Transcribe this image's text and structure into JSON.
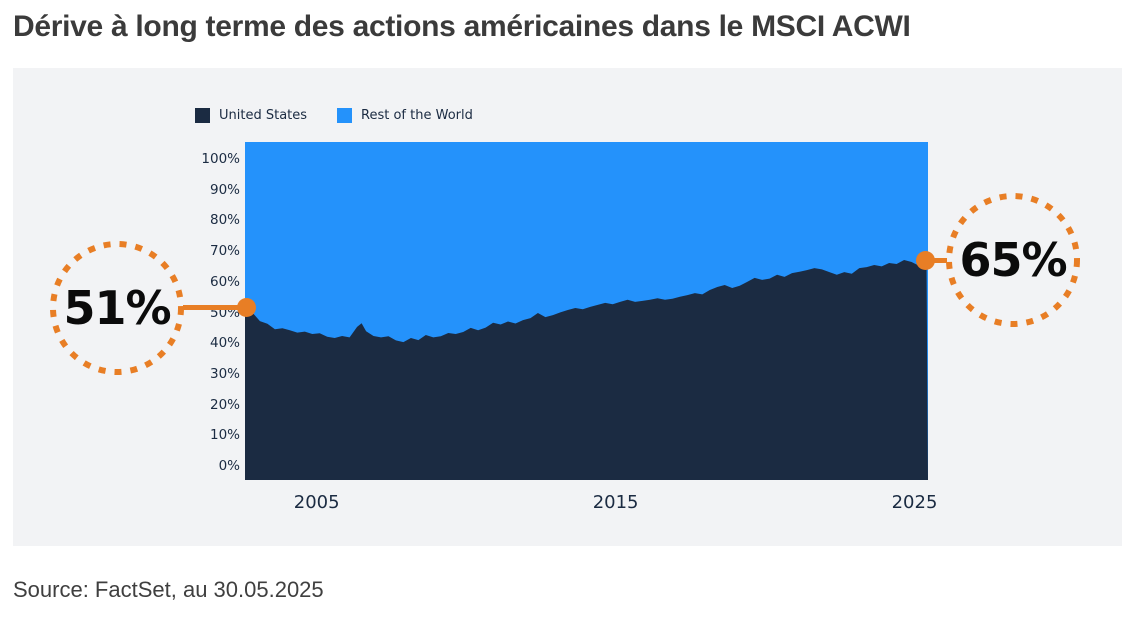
{
  "header": {
    "title": "Dérive à long terme des actions américaines dans le MSCI ACWI"
  },
  "footer": {
    "source": "Source: FactSet, au 30.05.2025"
  },
  "annotations": {
    "start": {
      "label": "51%"
    },
    "end": {
      "label": "65%"
    }
  },
  "colors": {
    "united_states_area": "#1b2b42",
    "rest_of_world_area": "#2492fb",
    "accent_orange": "#e87e25",
    "panel_background": "#f2f3f5",
    "title_text": "#3b3b3b",
    "axis_text": "#1b2b42",
    "callout_text": "#0b0b0b"
  },
  "chart_data": {
    "type": "area",
    "stacked_percent": true,
    "title": "Dérive à long terme des actions américaines dans le MSCI ACWI",
    "xlabel": "",
    "ylabel": "",
    "ylim": [
      0,
      100
    ],
    "x_range": [
      2002.6,
      2025.45
    ],
    "grid": false,
    "legend_position": "top-left",
    "y_ticks": [
      {
        "value": 0,
        "label": "0%"
      },
      {
        "value": 10,
        "label": "10%"
      },
      {
        "value": 20,
        "label": "20%"
      },
      {
        "value": 30,
        "label": "30%"
      },
      {
        "value": 40,
        "label": "40%"
      },
      {
        "value": 50,
        "label": "50%"
      },
      {
        "value": 60,
        "label": "60%"
      },
      {
        "value": 70,
        "label": "70%"
      },
      {
        "value": 80,
        "label": "80%"
      },
      {
        "value": 90,
        "label": "90%"
      },
      {
        "value": 100,
        "label": "100%"
      }
    ],
    "x_ticks": [
      {
        "value": 2005,
        "label": "2005"
      },
      {
        "value": 2015,
        "label": "2015"
      },
      {
        "value": 2025,
        "label": "2025"
      }
    ],
    "series": [
      {
        "name": "United States",
        "color": "#1b2b42",
        "points": [
          [
            2002.6,
            51.0
          ],
          [
            2002.85,
            49.5
          ],
          [
            2003.1,
            47.0
          ],
          [
            2003.35,
            46.2
          ],
          [
            2003.6,
            44.6
          ],
          [
            2003.85,
            44.9
          ],
          [
            2004.1,
            44.3
          ],
          [
            2004.35,
            43.6
          ],
          [
            2004.6,
            43.9
          ],
          [
            2004.85,
            43.2
          ],
          [
            2005.1,
            43.4
          ],
          [
            2005.35,
            42.4
          ],
          [
            2005.6,
            42.0
          ],
          [
            2005.85,
            42.6
          ],
          [
            2006.1,
            42.2
          ],
          [
            2006.35,
            45.3
          ],
          [
            2006.5,
            46.4
          ],
          [
            2006.65,
            44.0
          ],
          [
            2006.9,
            42.6
          ],
          [
            2007.15,
            42.2
          ],
          [
            2007.4,
            42.5
          ],
          [
            2007.65,
            41.3
          ],
          [
            2007.9,
            40.8
          ],
          [
            2008.15,
            42.0
          ],
          [
            2008.4,
            41.4
          ],
          [
            2008.65,
            42.9
          ],
          [
            2008.9,
            42.2
          ],
          [
            2009.15,
            42.5
          ],
          [
            2009.4,
            43.5
          ],
          [
            2009.65,
            43.2
          ],
          [
            2009.9,
            43.8
          ],
          [
            2010.15,
            45.0
          ],
          [
            2010.4,
            44.3
          ],
          [
            2010.65,
            45.1
          ],
          [
            2010.9,
            46.5
          ],
          [
            2011.15,
            46.0
          ],
          [
            2011.4,
            46.9
          ],
          [
            2011.65,
            46.3
          ],
          [
            2011.9,
            47.3
          ],
          [
            2012.15,
            47.9
          ],
          [
            2012.4,
            49.4
          ],
          [
            2012.65,
            48.2
          ],
          [
            2012.9,
            48.8
          ],
          [
            2013.15,
            49.6
          ],
          [
            2013.4,
            50.3
          ],
          [
            2013.65,
            50.9
          ],
          [
            2013.9,
            50.5
          ],
          [
            2014.15,
            51.2
          ],
          [
            2014.4,
            51.8
          ],
          [
            2014.65,
            52.4
          ],
          [
            2014.9,
            52.0
          ],
          [
            2015.15,
            52.7
          ],
          [
            2015.4,
            53.3
          ],
          [
            2015.65,
            52.7
          ],
          [
            2015.9,
            53.0
          ],
          [
            2016.15,
            53.3
          ],
          [
            2016.4,
            53.8
          ],
          [
            2016.65,
            53.3
          ],
          [
            2016.9,
            53.6
          ],
          [
            2017.15,
            54.2
          ],
          [
            2017.4,
            54.7
          ],
          [
            2017.65,
            55.3
          ],
          [
            2017.9,
            54.9
          ],
          [
            2018.15,
            56.2
          ],
          [
            2018.4,
            57.1
          ],
          [
            2018.65,
            57.7
          ],
          [
            2018.9,
            56.8
          ],
          [
            2019.15,
            57.5
          ],
          [
            2019.4,
            58.6
          ],
          [
            2019.65,
            59.8
          ],
          [
            2019.9,
            59.2
          ],
          [
            2020.15,
            59.6
          ],
          [
            2020.4,
            60.7
          ],
          [
            2020.65,
            60.1
          ],
          [
            2020.9,
            61.2
          ],
          [
            2021.15,
            61.6
          ],
          [
            2021.4,
            62.1
          ],
          [
            2021.65,
            62.7
          ],
          [
            2021.9,
            62.3
          ],
          [
            2022.15,
            61.5
          ],
          [
            2022.4,
            60.7
          ],
          [
            2022.65,
            61.5
          ],
          [
            2022.9,
            61.0
          ],
          [
            2023.15,
            62.7
          ],
          [
            2023.4,
            63.0
          ],
          [
            2023.65,
            63.6
          ],
          [
            2023.9,
            63.2
          ],
          [
            2024.15,
            64.2
          ],
          [
            2024.4,
            63.9
          ],
          [
            2024.65,
            65.1
          ],
          [
            2024.9,
            64.5
          ],
          [
            2025.1,
            63.6
          ],
          [
            2025.25,
            64.8
          ],
          [
            2025.4,
            65.0
          ]
        ]
      },
      {
        "name": "Rest of the World",
        "color": "#2492fb",
        "derived": "100 minus United States (stacked to 100%)"
      }
    ]
  }
}
